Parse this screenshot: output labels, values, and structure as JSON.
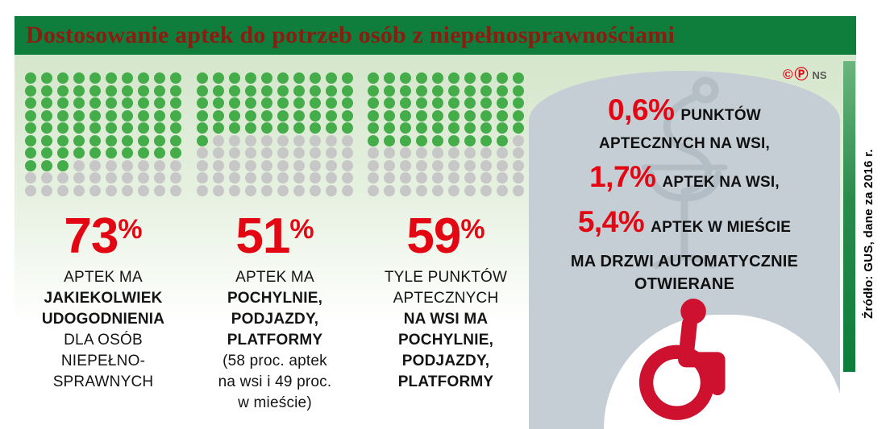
{
  "meta": {
    "title": "Dostosowanie aptek do potrzeb osób z niepełnosprawnościami",
    "copyright_c": "©",
    "copyright_p": "Ⓟ",
    "copyright_agency": "NS",
    "source_vertical": "Źródło: GUS, dane za 2016 r."
  },
  "colors": {
    "header_green": "#0f7d3c",
    "title_red": "#8e1b10",
    "accent_red": "#e30613",
    "dot_green": "#44ad49",
    "dot_gray": "#c7c7c7",
    "panel_gray": "#c5ced5",
    "wheelchair_red": "#cf1130"
  },
  "chart_data": {
    "type": "pictogram",
    "title": "Dostosowanie aptek do potrzeb osób z niepełnosprawnościami",
    "unit": "each dot = 1 percent, 100 dots per grid",
    "grids": [
      {
        "value": 73,
        "total": 100,
        "label": "aptek ma jakiekolwiek udogodnienia dla osób niepełnosprawnych"
      },
      {
        "value": 51,
        "total": 100,
        "label": "aptek ma pochylnie, podjazdy, platformy (58 proc. aptek na wsi i 49 proc. w mieście)"
      },
      {
        "value": 59,
        "total": 100,
        "label": "tyle punktów aptecznych na wsi ma pochylnie, podjazdy, platformy"
      }
    ],
    "door_stats": {
      "values": [
        "0,6%",
        "1,7%",
        "5,4%"
      ],
      "labels": [
        "punktów aptecznych na wsi",
        "aptek na wsi",
        "aptek w mieście"
      ],
      "note": "ma drzwi automatycznie otwierane"
    },
    "source": "GUS, dane za 2016 r."
  },
  "stats": [
    {
      "value": "73",
      "percent_sign": "%",
      "lines": [
        {
          "text": "APTEK MA"
        },
        {
          "text": "JAKIEKOLWIEK",
          "bold": true
        },
        {
          "text": "UDOGODNIENIA",
          "bold": true
        },
        {
          "text": "DLA OSÓB"
        },
        {
          "text": "NIEPEŁNO-"
        },
        {
          "text": "SPRAWNYCH"
        }
      ]
    },
    {
      "value": "51",
      "percent_sign": "%",
      "lines": [
        {
          "text": "APTEK MA"
        },
        {
          "text": "POCHYLNIE,",
          "bold": true
        },
        {
          "text": "PODJAZDY,",
          "bold": true
        },
        {
          "text": "PLATFORMY",
          "bold": true
        },
        {
          "text": "(58 proc. aptek"
        },
        {
          "text": "na wsi i 49 proc."
        },
        {
          "text": "w mieście)"
        }
      ]
    },
    {
      "value": "59",
      "percent_sign": "%",
      "lines": [
        {
          "text": "TYLE PUNKTÓW"
        },
        {
          "text": "APTECZNYCH"
        },
        {
          "text": "NA WSI MA",
          "bold": true
        },
        {
          "text": "POCHYLNIE,",
          "bold": true
        },
        {
          "text": "PODJAZDY,",
          "bold": true
        },
        {
          "text": "PLATFORMY",
          "bold": true
        }
      ]
    }
  ],
  "panel": {
    "lines": [
      {
        "value": "0,6%",
        "text": "PUNKTÓW"
      },
      {
        "text": "APTECZNYCH NA WSI,"
      },
      {
        "value": "1,7%",
        "text": "APTEK NA WSI,",
        "gap": true
      },
      {
        "value": "5,4%",
        "text": "APTEK W MIEŚCIE",
        "gap": true
      },
      {
        "text": "MA DRZWI AUTOMATYCZNIE",
        "strong": true,
        "gap": true
      },
      {
        "text": "OTWIERANE",
        "strong": true
      }
    ]
  }
}
